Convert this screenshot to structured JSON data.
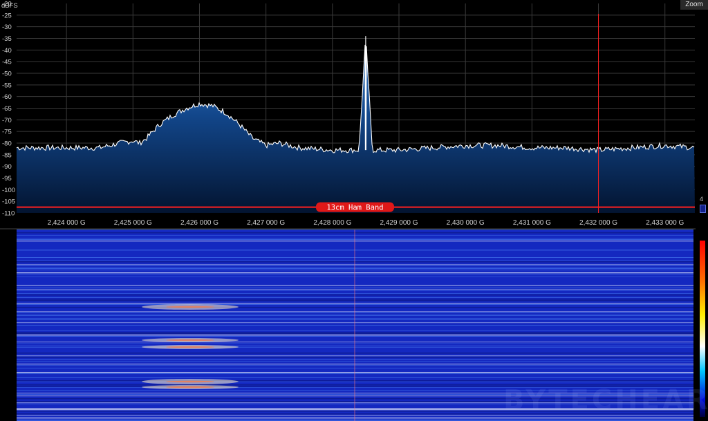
{
  "toolbar": {
    "zoom_label": "Zoom"
  },
  "gain": {
    "label": "4"
  },
  "watermark": "BYTECHEAR",
  "colors": {
    "accent": "#ff2020",
    "trace": "#ffffff",
    "fill": "#1a5aa8",
    "waterfall_base": "#1428c0"
  },
  "chart_data": {
    "type": "line",
    "ylabel": "dBFS",
    "y_ticks": [
      "-20",
      "-25",
      "-30",
      "-35",
      "-40",
      "-45",
      "-50",
      "-55",
      "-60",
      "-65",
      "-70",
      "-75",
      "-80",
      "-85",
      "-90",
      "-95",
      "-100",
      "-105",
      "-110"
    ],
    "ylim": [
      -110,
      -20
    ],
    "x_unit": "GHz",
    "xlim": [
      2.42325,
      2.43345
    ],
    "x_ticks": [
      {
        "value": 2.424,
        "label": "2,424 000 G"
      },
      {
        "value": 2.425,
        "label": "2,425 000 G"
      },
      {
        "value": 2.426,
        "label": "2,426 000 G"
      },
      {
        "value": 2.427,
        "label": "2,427 000 G"
      },
      {
        "value": 2.428,
        "label": "2,428 000 G"
      },
      {
        "value": 2.429,
        "label": "2,429 000 G"
      },
      {
        "value": 2.43,
        "label": "2,430 000 G"
      },
      {
        "value": 2.431,
        "label": "2,431 000 G"
      },
      {
        "value": 2.432,
        "label": "2,432 000 G"
      },
      {
        "value": 2.433,
        "label": "2,433 000 G"
      }
    ],
    "grid": true,
    "series": [
      {
        "x": [
          2.42325,
          2.4235,
          2.424,
          2.4245,
          2.4248,
          2.425,
          2.4251,
          2.4252,
          2.4254,
          2.4256,
          2.4258,
          2.426,
          2.4262,
          2.4264,
          2.4266,
          2.4268,
          2.427,
          2.4272,
          2.4275,
          2.428,
          2.4284,
          2.4285,
          2.4286,
          2.429,
          2.4295,
          2.43,
          2.4305,
          2.431,
          2.4315,
          2.432,
          2.4325,
          2.433,
          2.43345
        ],
        "y": [
          -82,
          -82,
          -82,
          -82,
          -80,
          -79,
          -80,
          -78,
          -72,
          -68,
          -65,
          -63,
          -64,
          -67,
          -72,
          -78,
          -81,
          -80,
          -82,
          -83,
          -83,
          -34,
          -83,
          -83,
          -82,
          -81,
          -81,
          -82,
          -82,
          -83,
          -82,
          -81,
          -82
        ]
      }
    ],
    "marker_freq": 2.432,
    "band_label": "13cm Ham Band",
    "band_level": -107.5
  }
}
